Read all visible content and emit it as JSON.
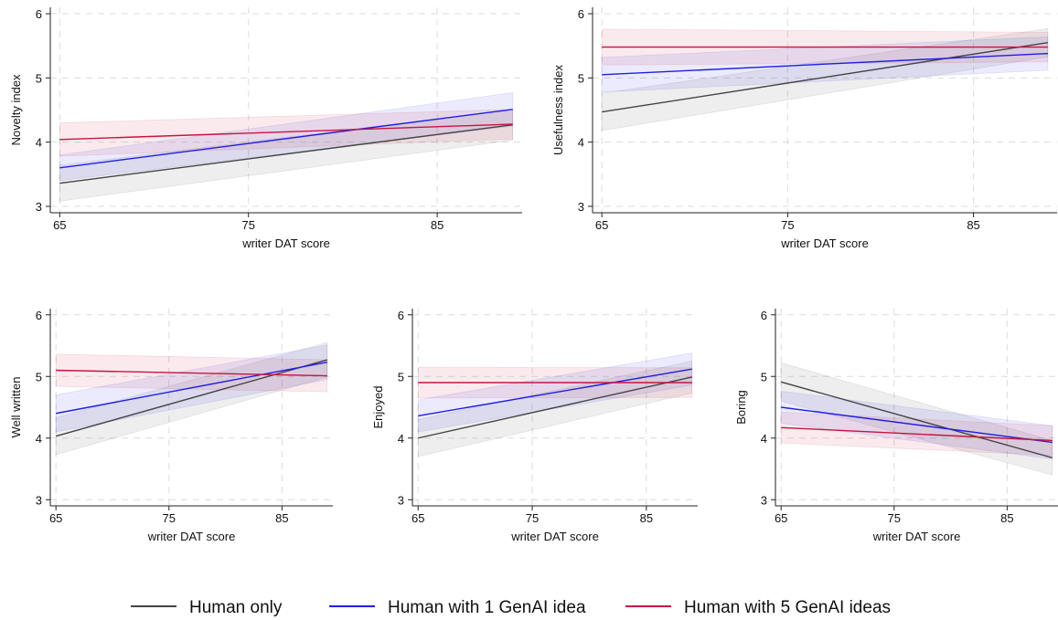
{
  "colors": {
    "human_only": "#444444",
    "one_genai": "#1f1fe6",
    "five_genai": "#c8143c"
  },
  "chart_data": [
    {
      "type": "line",
      "xlabel": "writer DAT score",
      "ylabel": "Novelty index",
      "xlim": [
        64.5,
        89.5
      ],
      "ylim": [
        2.9,
        6.1
      ],
      "xticks": [
        65,
        75,
        85
      ],
      "yticks": [
        3,
        4,
        5,
        6
      ],
      "grid": true,
      "x": [
        65,
        89
      ],
      "series": [
        {
          "name": "Human only",
          "values": [
            3.36,
            4.27
          ],
          "lower": [
            3.08,
            4.03
          ],
          "upper": [
            3.64,
            4.51
          ]
        },
        {
          "name": "Human with 1 GenAI idea",
          "values": [
            3.6,
            4.51
          ],
          "lower": [
            3.4,
            4.25
          ],
          "upper": [
            3.8,
            4.77
          ]
        },
        {
          "name": "Human with 5 GenAI ideas",
          "values": [
            4.04,
            4.28
          ],
          "lower": [
            3.78,
            4.05
          ],
          "upper": [
            4.3,
            4.51
          ]
        }
      ]
    },
    {
      "type": "line",
      "xlabel": "writer DAT score",
      "ylabel": "Usefulness index",
      "xlim": [
        64.5,
        89.5
      ],
      "ylim": [
        2.9,
        6.1
      ],
      "xticks": [
        65,
        75,
        85
      ],
      "yticks": [
        3,
        4,
        5,
        6
      ],
      "grid": true,
      "x": [
        65,
        89
      ],
      "series": [
        {
          "name": "Human only",
          "values": [
            4.47,
            5.55
          ],
          "lower": [
            4.18,
            5.33
          ],
          "upper": [
            4.76,
            5.77
          ]
        },
        {
          "name": "Human with 1 GenAI idea",
          "values": [
            5.05,
            5.38
          ],
          "lower": [
            4.78,
            5.12
          ],
          "upper": [
            5.32,
            5.64
          ]
        },
        {
          "name": "Human with 5 GenAI ideas",
          "values": [
            5.48,
            5.48
          ],
          "lower": [
            5.2,
            5.25
          ],
          "upper": [
            5.76,
            5.71
          ]
        }
      ]
    },
    {
      "type": "line",
      "xlabel": "writer DAT score",
      "ylabel": "Well written",
      "xlim": [
        64.5,
        89.5
      ],
      "ylim": [
        2.9,
        6.1
      ],
      "xticks": [
        65,
        75,
        85
      ],
      "yticks": [
        3,
        4,
        5,
        6
      ],
      "grid": true,
      "x": [
        65,
        89
      ],
      "series": [
        {
          "name": "Human only",
          "values": [
            4.03,
            5.27
          ],
          "lower": [
            3.73,
            4.99
          ],
          "upper": [
            4.33,
            5.55
          ]
        },
        {
          "name": "Human with 1 GenAI idea",
          "values": [
            4.4,
            5.23
          ],
          "lower": [
            4.1,
            4.95
          ],
          "upper": [
            4.7,
            5.51
          ]
        },
        {
          "name": "Human with 5 GenAI ideas",
          "values": [
            5.1,
            5.01
          ],
          "lower": [
            4.84,
            4.75
          ],
          "upper": [
            5.36,
            5.27
          ]
        }
      ]
    },
    {
      "type": "line",
      "xlabel": "writer DAT score",
      "ylabel": "Enjoyed",
      "xlim": [
        64.5,
        89.5
      ],
      "ylim": [
        2.9,
        6.1
      ],
      "xticks": [
        65,
        75,
        85
      ],
      "yticks": [
        3,
        4,
        5,
        6
      ],
      "grid": true,
      "x": [
        65,
        89
      ],
      "series": [
        {
          "name": "Human only",
          "values": [
            4.0,
            4.99
          ],
          "lower": [
            3.7,
            4.73
          ],
          "upper": [
            4.3,
            5.25
          ]
        },
        {
          "name": "Human with 1 GenAI idea",
          "values": [
            4.36,
            5.12
          ],
          "lower": [
            4.1,
            4.86
          ],
          "upper": [
            4.62,
            5.38
          ]
        },
        {
          "name": "Human with 5 GenAI ideas",
          "values": [
            4.9,
            4.9
          ],
          "lower": [
            4.65,
            4.66
          ],
          "upper": [
            5.15,
            5.14
          ]
        }
      ]
    },
    {
      "type": "line",
      "xlabel": "writer DAT score",
      "ylabel": "Boring",
      "xlim": [
        64.5,
        89.5
      ],
      "ylim": [
        2.9,
        6.1
      ],
      "xticks": [
        65,
        75,
        85
      ],
      "yticks": [
        3,
        4,
        5,
        6
      ],
      "grid": true,
      "x": [
        65,
        89
      ],
      "series": [
        {
          "name": "Human only",
          "values": [
            4.91,
            3.68
          ],
          "lower": [
            4.6,
            3.4
          ],
          "upper": [
            5.22,
            3.96
          ]
        },
        {
          "name": "Human with 1 GenAI idea",
          "values": [
            4.5,
            3.93
          ],
          "lower": [
            4.24,
            3.66
          ],
          "upper": [
            4.76,
            4.2
          ]
        },
        {
          "name": "Human with 5 GenAI ideas",
          "values": [
            4.17,
            3.96
          ],
          "lower": [
            3.92,
            3.72
          ],
          "upper": [
            4.42,
            4.2
          ]
        }
      ]
    }
  ],
  "legend": {
    "placement": "bottom",
    "items": [
      "Human only",
      "Human with 1 GenAI idea",
      "Human with 5 GenAI ideas"
    ]
  }
}
